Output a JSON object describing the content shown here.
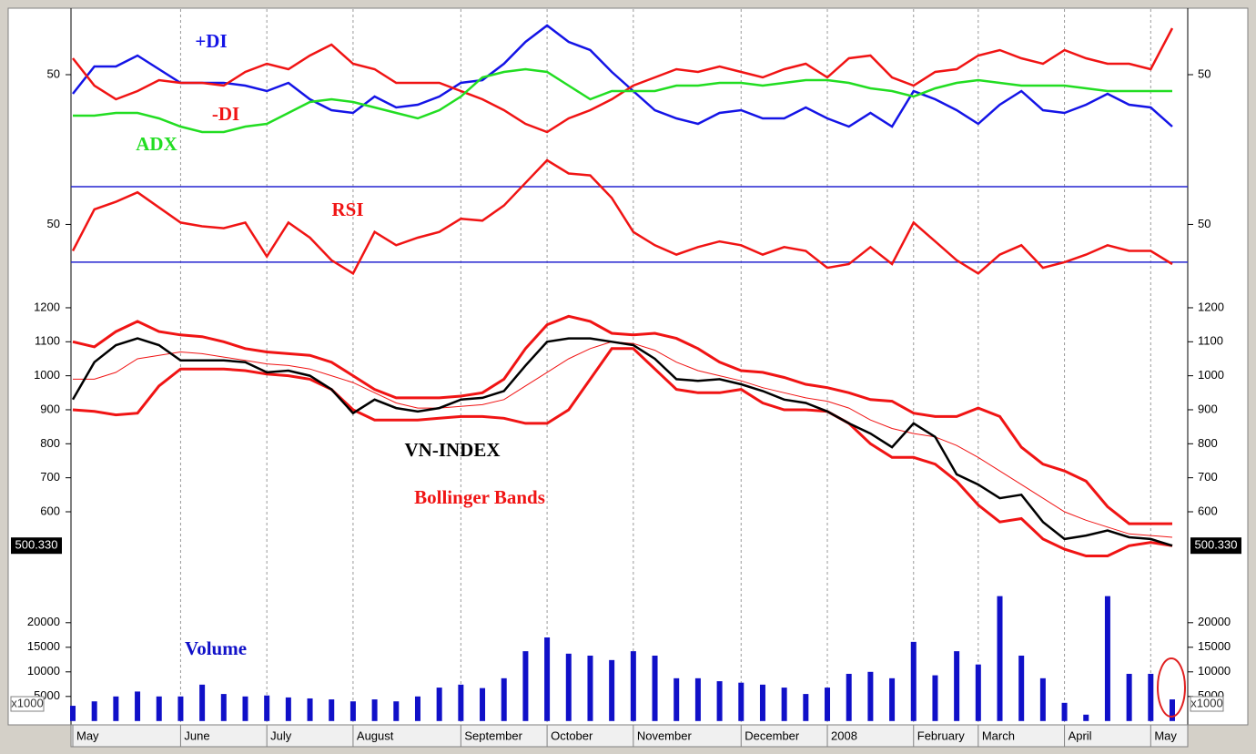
{
  "chart_data": [
    {
      "type": "line",
      "ylim": [
        15,
        70
      ],
      "yticks": [
        50
      ],
      "series": [
        {
          "name": "+DI",
          "color": "#1414e6",
          "values": [
            43,
            53,
            53,
            57,
            52,
            47,
            47,
            47,
            46,
            44,
            47,
            41,
            37,
            36,
            42,
            38,
            39,
            42,
            47,
            48,
            54,
            62,
            68,
            62,
            59,
            51,
            44,
            37,
            34,
            32,
            36,
            37,
            34,
            34,
            38,
            34,
            31,
            36,
            31,
            44,
            41,
            37,
            32,
            39,
            44,
            37,
            36,
            39,
            43,
            39,
            38,
            31
          ]
        },
        {
          "name": "-DI",
          "color": "#f01414",
          "values": [
            56,
            46,
            41,
            44,
            48,
            47,
            47,
            46,
            51,
            54,
            52,
            57,
            61,
            54,
            52,
            47,
            47,
            47,
            44,
            41,
            37,
            32,
            29,
            34,
            37,
            41,
            46,
            49,
            52,
            51,
            53,
            51,
            49,
            52,
            54,
            49,
            56,
            57,
            49,
            46,
            51,
            52,
            57,
            59,
            56,
            54,
            59,
            56,
            54,
            54,
            52,
            67
          ]
        },
        {
          "name": "ADX",
          "color": "#22dd22",
          "values": [
            35,
            35,
            36,
            36,
            34,
            31,
            29,
            29,
            31,
            32,
            36,
            40,
            41,
            40,
            38,
            36,
            34,
            37,
            42,
            49,
            51,
            52,
            51,
            46,
            41,
            44,
            44,
            44,
            46,
            46,
            47,
            47,
            46,
            47,
            48,
            48,
            47,
            45,
            44,
            42,
            45,
            47,
            48,
            47,
            46,
            46,
            46,
            45,
            44,
            44,
            44,
            44
          ]
        }
      ]
    },
    {
      "type": "line",
      "ylim": [
        15,
        85
      ],
      "yticks": [
        50
      ],
      "levels": [
        30,
        70
      ],
      "level_color": "#2424d0",
      "series": [
        {
          "name": "RSI",
          "color": "#f01414",
          "values": [
            36,
            58,
            62,
            67,
            59,
            51,
            49,
            48,
            51,
            33,
            51,
            43,
            31,
            24,
            46,
            39,
            43,
            46,
            53,
            52,
            60,
            72,
            84,
            77,
            76,
            64,
            46,
            39,
            34,
            38,
            41,
            39,
            34,
            38,
            36,
            27,
            29,
            38,
            29,
            51,
            41,
            31,
            24,
            34,
            39,
            27,
            30,
            34,
            39,
            36,
            36,
            29
          ]
        }
      ]
    },
    {
      "type": "line",
      "ylim": [
        390,
        1235
      ],
      "yticks": [
        600,
        700,
        800,
        900,
        1000,
        1100,
        1200
      ],
      "marker": {
        "value": 500.33,
        "label": "500.330"
      },
      "series": [
        {
          "name": "VN-INDEX",
          "color": "#000000",
          "values": [
            930,
            1040,
            1090,
            1110,
            1090,
            1045,
            1045,
            1045,
            1040,
            1010,
            1015,
            1000,
            960,
            890,
            930,
            905,
            895,
            905,
            930,
            935,
            955,
            1030,
            1100,
            1110,
            1110,
            1100,
            1090,
            1050,
            990,
            985,
            990,
            975,
            955,
            930,
            920,
            895,
            860,
            830,
            790,
            860,
            820,
            710,
            680,
            640,
            650,
            570,
            520,
            530,
            545,
            525,
            520,
            500.33
          ]
        }
      ],
      "bands": {
        "name": "Bollinger Bands",
        "color": "#f01414",
        "upper": [
          1100,
          1085,
          1130,
          1160,
          1130,
          1120,
          1115,
          1100,
          1080,
          1070,
          1065,
          1060,
          1040,
          1000,
          960,
          935,
          935,
          935,
          940,
          950,
          990,
          1080,
          1150,
          1175,
          1160,
          1125,
          1120,
          1125,
          1110,
          1080,
          1040,
          1015,
          1010,
          995,
          975,
          965,
          950,
          930,
          925,
          890,
          880,
          880,
          905,
          880,
          790,
          740,
          720,
          690,
          615,
          565,
          565,
          565
        ],
        "middle": [
          990,
          990,
          1010,
          1050,
          1060,
          1070,
          1065,
          1055,
          1045,
          1035,
          1030,
          1020,
          1000,
          980,
          950,
          920,
          905,
          905,
          910,
          915,
          930,
          970,
          1010,
          1050,
          1080,
          1100,
          1095,
          1075,
          1040,
          1015,
          1000,
          985,
          965,
          950,
          935,
          925,
          905,
          870,
          845,
          830,
          820,
          795,
          760,
          720,
          680,
          640,
          600,
          575,
          555,
          535,
          530,
          525
        ],
        "lower": [
          900,
          895,
          885,
          890,
          970,
          1020,
          1020,
          1020,
          1015,
          1005,
          1000,
          990,
          960,
          900,
          870,
          870,
          870,
          875,
          880,
          880,
          875,
          860,
          860,
          900,
          990,
          1080,
          1080,
          1020,
          960,
          950,
          950,
          960,
          920,
          900,
          900,
          895,
          860,
          800,
          760,
          760,
          740,
          690,
          620,
          570,
          580,
          520,
          490,
          470,
          470,
          500,
          510,
          500
        ]
      }
    },
    {
      "type": "bar",
      "ylim": [
        0,
        27000
      ],
      "yticks": [
        5000,
        10000,
        15000,
        20000
      ],
      "unit_label": "x1000",
      "categories": [
        "May",
        null,
        null,
        null,
        null,
        "June",
        null,
        null,
        null,
        "July",
        null,
        null,
        null,
        "August",
        null,
        null,
        null,
        null,
        "September",
        null,
        null,
        null,
        "October",
        null,
        null,
        null,
        "November",
        null,
        null,
        null,
        null,
        "December",
        null,
        null,
        null,
        "2008",
        null,
        null,
        null,
        "February",
        null,
        null,
        "March",
        null,
        null,
        null,
        "April",
        null,
        null,
        null,
        "May",
        null
      ],
      "series": [
        {
          "name": "Volume",
          "color": "#1010c8",
          "values": [
            3100,
            4000,
            5000,
            6000,
            5000,
            5000,
            7400,
            5500,
            5000,
            5200,
            4800,
            4600,
            4400,
            4000,
            4400,
            4000,
            5000,
            6800,
            7400,
            6700,
            8700,
            14200,
            17000,
            13700,
            13300,
            12400,
            14200,
            13300,
            8700,
            8700,
            8100,
            7800,
            7400,
            6800,
            5500,
            6800,
            9600,
            10000,
            8700,
            16100,
            9300,
            14200,
            11500,
            25400,
            13300,
            8700,
            3700,
            1300,
            25400,
            9600,
            9600,
            4400
          ]
        }
      ]
    }
  ]
}
